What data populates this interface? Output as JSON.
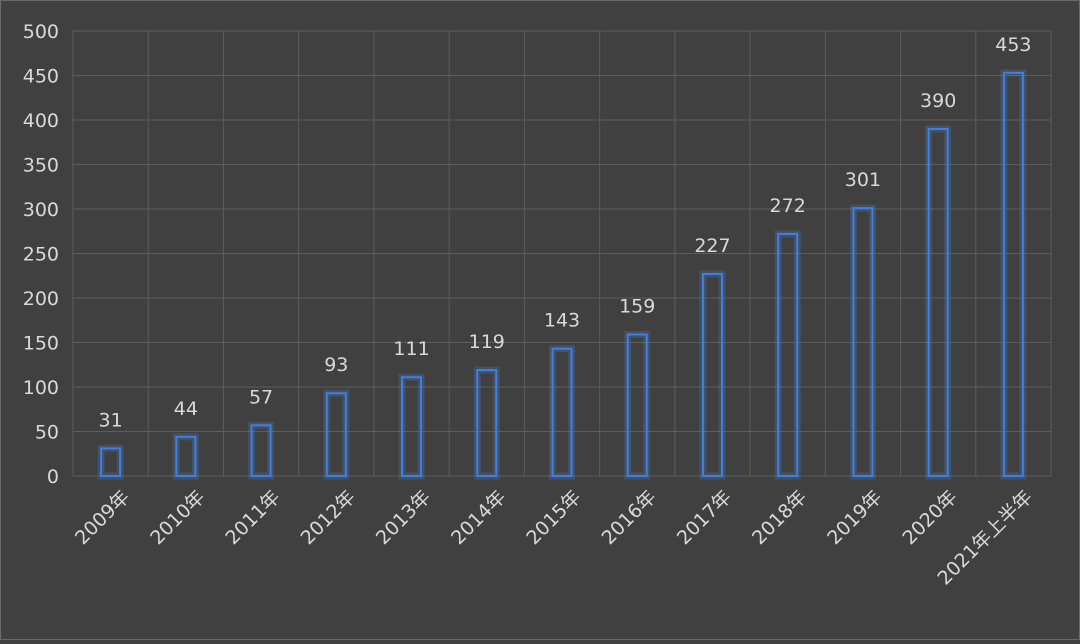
{
  "chart_data": {
    "type": "bar",
    "categories": [
      "2009年",
      "2010年",
      "2011年",
      "2012年",
      "2013年",
      "2014年",
      "2015年",
      "2016年",
      "2017年",
      "2018年",
      "2019年",
      "2020年",
      "2021年上半年"
    ],
    "values": [
      31,
      44,
      57,
      93,
      111,
      119,
      143,
      159,
      227,
      272,
      301,
      390,
      453
    ],
    "title": "",
    "xlabel": "",
    "ylabel": "",
    "ylim": [
      0,
      500
    ],
    "yticks": [
      0,
      50,
      100,
      150,
      200,
      250,
      300,
      350,
      400,
      450,
      500
    ],
    "grid": true,
    "legend": "none",
    "data_labels": true,
    "colors": {
      "background": "#404040",
      "bar_stroke": "#3f7fe0",
      "bar_glow": "#4f8ff0",
      "grid": "#5c5c5c",
      "text": "#d9d9d9"
    }
  }
}
